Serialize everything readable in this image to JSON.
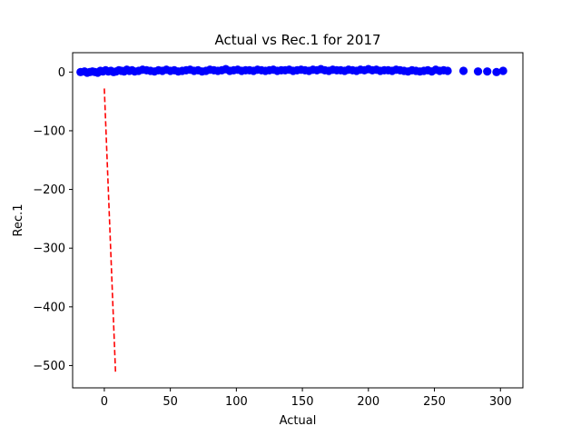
{
  "chart_data": {
    "type": "scatter",
    "title": "Actual vs Rec.1 for 2017",
    "xlabel": "Actual",
    "ylabel": "Rec.1",
    "xlim": [
      -24,
      317
    ],
    "ylim": [
      -538,
      33
    ],
    "xticks": [
      0,
      50,
      100,
      150,
      200,
      250,
      300
    ],
    "yticks": [
      0,
      -100,
      -200,
      -300,
      -400,
      -500
    ],
    "xtick_labels": [
      "0",
      "50",
      "100",
      "150",
      "200",
      "250",
      "300"
    ],
    "ytick_labels": [
      "0",
      "−100",
      "−200",
      "−300",
      "−400",
      "−500"
    ],
    "grid": false,
    "legend": "none",
    "colors": {
      "points": "#0000ff",
      "line": "#ff0000"
    },
    "series": [
      {
        "type": "scatter",
        "x": [
          -18,
          -15,
          -13,
          -11,
          -9,
          -7,
          -5,
          -3,
          -1,
          1,
          3,
          5,
          7,
          9,
          11,
          13,
          15,
          17,
          19,
          21,
          23,
          26,
          29,
          32,
          35,
          38,
          41,
          44,
          47,
          50,
          53,
          56,
          59,
          62,
          65,
          68,
          71,
          74,
          77,
          80,
          83,
          86,
          89,
          92,
          95,
          98,
          101,
          104,
          107,
          110,
          113,
          116,
          119,
          122,
          125,
          128,
          131,
          134,
          137,
          140,
          143,
          146,
          149,
          152,
          155,
          158,
          161,
          164,
          167,
          170,
          173,
          176,
          179,
          182,
          185,
          188,
          191,
          194,
          197,
          200,
          203,
          206,
          209,
          212,
          215,
          218,
          221,
          224,
          227,
          230,
          233,
          236,
          239,
          242,
          245,
          248,
          251,
          254,
          257,
          260,
          272,
          283,
          290,
          297,
          302
        ],
        "y": [
          0,
          1,
          -1,
          0,
          1,
          0,
          -1,
          2,
          1,
          3,
          1,
          2,
          0,
          1,
          3,
          2,
          1,
          4,
          2,
          3,
          1,
          2,
          4,
          3,
          2,
          1,
          3,
          2,
          4,
          2,
          3,
          1,
          2,
          3,
          4,
          2,
          3,
          1,
          2,
          4,
          3,
          2,
          3,
          5,
          2,
          3,
          4,
          2,
          3,
          3,
          2,
          4,
          3,
          2,
          3,
          4,
          2,
          3,
          3,
          4,
          2,
          3,
          4,
          3,
          2,
          4,
          3,
          5,
          3,
          2,
          4,
          3,
          3,
          2,
          4,
          3,
          2,
          4,
          3,
          5,
          3,
          4,
          2,
          3,
          3,
          2,
          4,
          3,
          2,
          1,
          3,
          2,
          1,
          2,
          3,
          1,
          4,
          2,
          3,
          2,
          2,
          1,
          1,
          0,
          2
        ]
      },
      {
        "type": "line",
        "style": "dashed",
        "x": [
          0,
          8.5
        ],
        "y": [
          -28,
          -512
        ]
      }
    ]
  }
}
